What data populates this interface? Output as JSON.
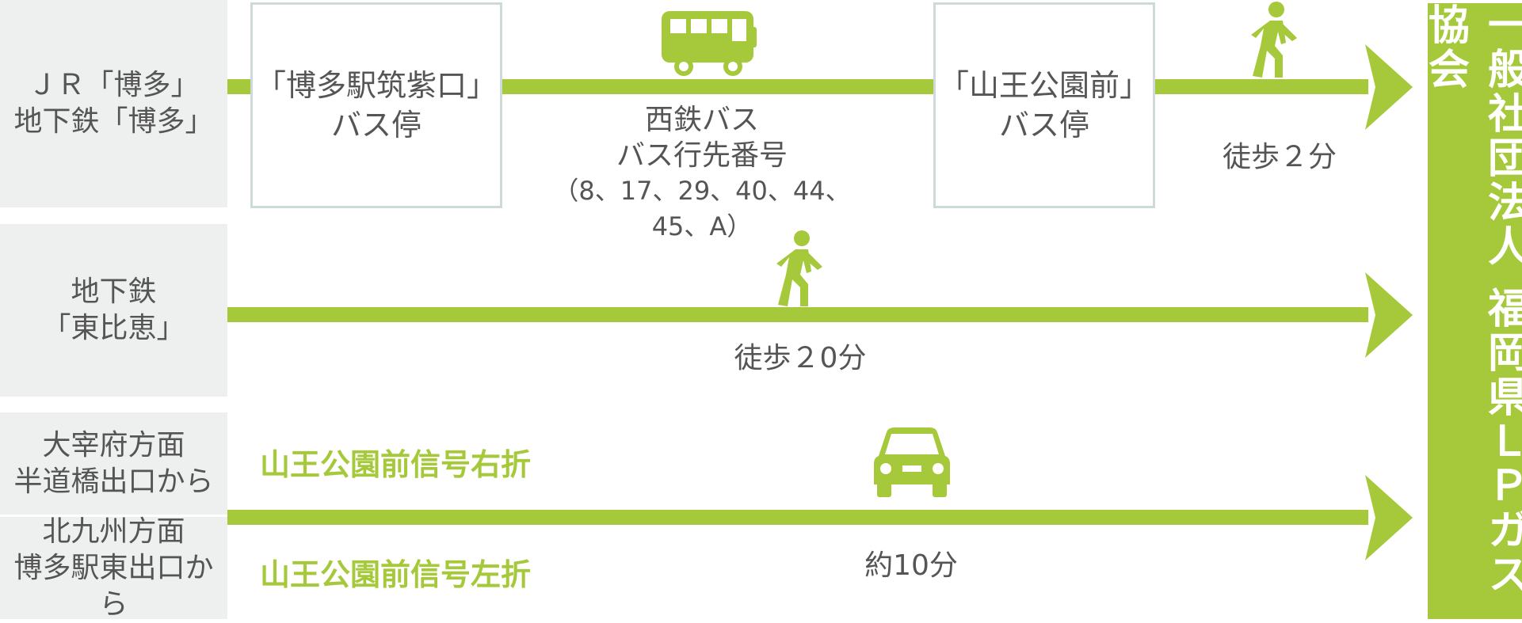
{
  "routes": {
    "jr": {
      "origin_line1": "ＪＲ「博多」",
      "origin_line2": "地下鉄「博多」",
      "stop1_line1": "「博多駅筑紫口」",
      "stop1_line2": "バス停",
      "bus_line1": "西鉄バス",
      "bus_line2": "バス行先番号",
      "bus_line3": "（8、17、29、40、44、45、A）",
      "stop2_line1": "「山王公園前」",
      "stop2_line2": "バス停",
      "walk": "徒歩２分"
    },
    "subway": {
      "origin_line1": "地下鉄",
      "origin_line2": "「東比恵」",
      "walk": "徒歩２0分"
    },
    "car": {
      "origin_a_line1": "大宰府方面",
      "origin_a_line2": "半道橋出口から",
      "turn_a": "山王公園前信号右折",
      "origin_b_line1": "北九州方面",
      "origin_b_line2": "博多駅東出口から",
      "turn_b": "山王公園前信号左折",
      "time": "約10分"
    }
  },
  "destination": "一般社団法人 福岡県ＬＰガス協会",
  "icons": [
    "bus-icon",
    "walker-icon",
    "car-icon"
  ],
  "colors": {
    "accent": "#a5c93a",
    "panel": "#eef0f0",
    "box_border": "#cddada",
    "text": "#555555"
  }
}
